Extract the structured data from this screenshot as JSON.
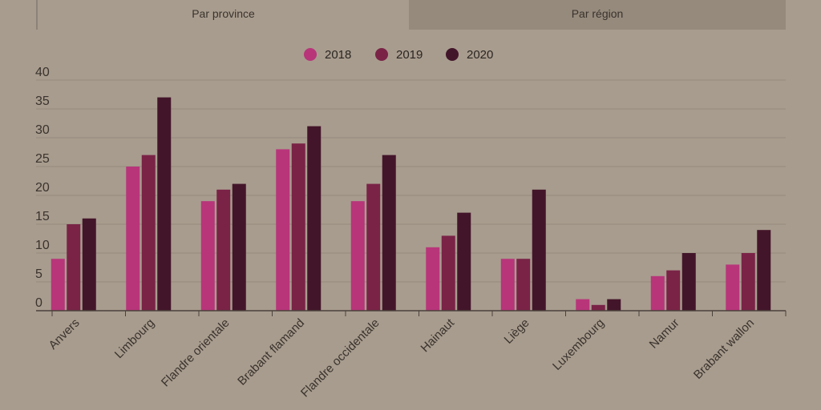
{
  "tabs": [
    {
      "label": "Par province",
      "active": true
    },
    {
      "label": "Par région",
      "active": false
    }
  ],
  "chart_data": {
    "type": "bar",
    "title": "",
    "xlabel": "",
    "ylabel": "",
    "ylim": [
      0,
      40
    ],
    "yticks": [
      0,
      5,
      10,
      15,
      20,
      25,
      30,
      35,
      40
    ],
    "grid": true,
    "legend_position": "top-center",
    "categories": [
      "Anvers",
      "Limbourg",
      "Flandre orientale",
      "Brabant flamand",
      "Flandre occidentale",
      "Hainaut",
      "Liège",
      "Luxembourg",
      "Namur",
      "Brabant wallon"
    ],
    "series": [
      {
        "name": "2018",
        "color": "#b8357a",
        "values": [
          9,
          25,
          19,
          28,
          19,
          11,
          9,
          2,
          6,
          8
        ]
      },
      {
        "name": "2019",
        "color": "#7a2347",
        "values": [
          15,
          27,
          21,
          29,
          22,
          13,
          9,
          1,
          7,
          10
        ]
      },
      {
        "name": "2020",
        "color": "#43152a",
        "values": [
          16,
          37,
          22,
          32,
          27,
          17,
          21,
          2,
          10,
          14
        ]
      }
    ]
  }
}
